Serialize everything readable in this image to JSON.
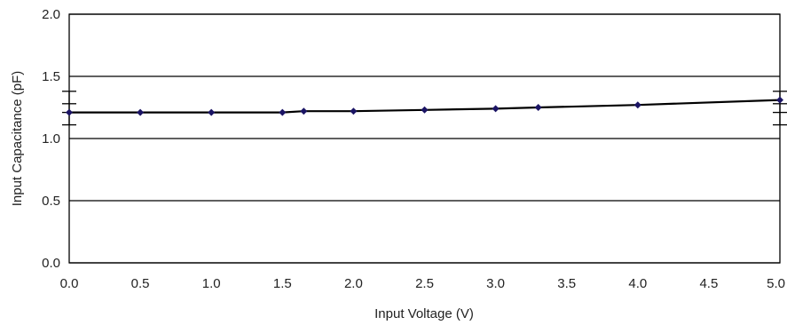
{
  "chart_data": {
    "type": "line",
    "xlabel": "Input Voltage (V)",
    "ylabel": "Input Capacitance (pF)",
    "xlim": [
      0.0,
      5.0
    ],
    "ylim": [
      0.0,
      2.0
    ],
    "x_ticks": [
      "0.0",
      "0.5",
      "1.0",
      "1.5",
      "2.0",
      "2.5",
      "3.0",
      "3.5",
      "4.0",
      "4.5",
      "5.0"
    ],
    "y_ticks": [
      "0.0",
      "0.5",
      "1.0",
      "1.5",
      "2.0"
    ],
    "grid": true,
    "legend": "none",
    "series": [
      {
        "x": [
          0.0,
          0.5,
          1.0,
          1.5,
          1.65,
          2.0,
          2.5,
          3.0,
          3.3,
          4.0,
          5.0
        ],
        "y": [
          1.21,
          1.21,
          1.21,
          1.21,
          1.22,
          1.22,
          1.23,
          1.24,
          1.25,
          1.27,
          1.31
        ],
        "color": "#000000",
        "marker_color": "#1b1464"
      }
    ],
    "error_bars": [
      {
        "x": 0.0,
        "low": 1.11,
        "high": 1.38
      },
      {
        "x": 5.0,
        "low": 1.11,
        "high": 1.38
      }
    ]
  }
}
